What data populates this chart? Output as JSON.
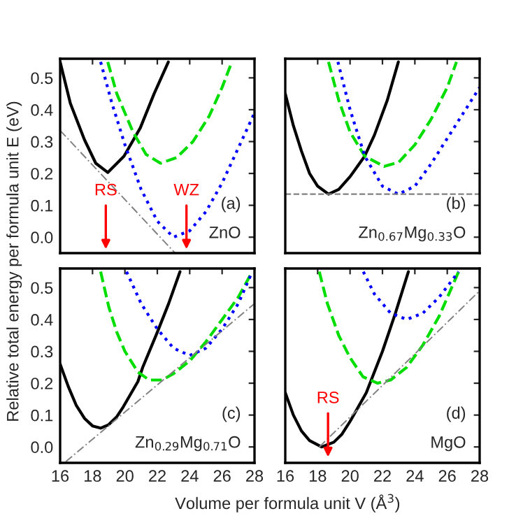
{
  "chart_data": [
    {
      "type": "line",
      "ylabel": "Relative total energy per formula unit E (eV)",
      "xlim": [
        16,
        28
      ],
      "ylim": [
        -0.05,
        0.56
      ],
      "xticks": [
        16,
        18,
        20,
        22,
        24,
        26,
        28
      ],
      "yticks": [
        {
          "value": 0.0,
          "label": "0.0"
        },
        0.1,
        0.2,
        0.3,
        0.4,
        0.5
      ],
      "tick_labels": "y",
      "grid": false,
      "legend": false,
      "series": [
        {
          "color": "#000000",
          "line_style": "solid",
          "x": [
            16,
            16.63,
            17.5,
            18.2,
            18.94,
            19.94,
            20.95,
            21.8,
            22.68
          ],
          "values": [
            0.55,
            0.42,
            0.306,
            0.232,
            0.203,
            0.254,
            0.343,
            0.45,
            0.55
          ]
        },
        {
          "color": "#00dd00",
          "line_style": "dashed",
          "x": [
            18.94,
            19.5,
            20.5,
            21.3,
            22.2,
            23.2,
            24.2,
            25.2,
            26.0,
            26.6
          ],
          "values": [
            0.55,
            0.45,
            0.33,
            0.26,
            0.232,
            0.25,
            0.3,
            0.38,
            0.47,
            0.55
          ]
        },
        {
          "color": "#0000ff",
          "line_style": "dotted",
          "x": [
            18.5,
            19.2,
            20,
            21,
            22,
            23,
            24,
            25,
            26,
            27,
            28
          ],
          "values": [
            0.55,
            0.42,
            0.29,
            0.15,
            0.05,
            0.0,
            0.02,
            0.08,
            0.17,
            0.28,
            0.39
          ]
        },
        {
          "color": "#808080",
          "line_style": "dashed",
          "x": [
            16,
            23.1
          ],
          "values": [
            0.335,
            -0.05
          ]
        }
      ],
      "annotations": [
        "(a)",
        "ZnO",
        "RS",
        "WZ"
      ]
    },
    {
      "type": "line",
      "xlim": [
        16,
        28
      ],
      "ylim": [
        -0.05,
        0.56
      ],
      "xticks": [
        16,
        18,
        20,
        22,
        24,
        26,
        28
      ],
      "yticks": [
        0.0,
        0.1,
        0.2,
        0.3,
        0.4,
        0.5
      ],
      "tick_labels": false,
      "grid": false,
      "legend": false,
      "series": [
        {
          "color": "#000000",
          "line_style": "solid",
          "x": [
            16,
            16.5,
            17,
            17.5,
            18,
            18.67,
            19.3,
            20,
            20.9,
            21.5,
            22.3,
            22.98
          ],
          "values": [
            0.45,
            0.35,
            0.27,
            0.2,
            0.16,
            0.135,
            0.15,
            0.19,
            0.254,
            0.32,
            0.43,
            0.55
          ]
        },
        {
          "color": "#00dd00",
          "line_style": "dashed",
          "x": [
            18.67,
            19.3,
            20,
            20.91,
            22.1,
            23,
            24,
            25,
            26,
            26.57
          ],
          "values": [
            0.55,
            0.43,
            0.33,
            0.254,
            0.222,
            0.235,
            0.29,
            0.37,
            0.47,
            0.55
          ]
        },
        {
          "color": "#0000ff",
          "line_style": "dotted",
          "x": [
            19.25,
            20,
            20.91,
            22,
            22.98,
            24,
            25,
            26,
            27,
            28
          ],
          "values": [
            0.55,
            0.4,
            0.254,
            0.16,
            0.135,
            0.16,
            0.23,
            0.31,
            0.39,
            0.47
          ]
        }
      ],
      "ref_lines": [
        {
          "axis": "y",
          "value": 0.135,
          "color": "#808080",
          "line_style": "dashed"
        }
      ],
      "annotations": [
        "(b)",
        "Zn$_{0.67}$Mg$_{0.33}$O"
      ]
    },
    {
      "type": "line",
      "xlabel": "Volume per formula unit V (Å$^{3}$)",
      "xlim": [
        16,
        28
      ],
      "ylim": [
        -0.05,
        0.56
      ],
      "xticks": [
        16,
        18,
        20,
        22,
        24,
        26,
        28
      ],
      "yticks": [
        {
          "value": 0.0,
          "label": "0.0"
        },
        0.1,
        0.2,
        0.3,
        0.4,
        0.5
      ],
      "grid": false,
      "legend": false,
      "series": [
        {
          "color": "#000000",
          "line_style": "solid",
          "x": [
            16,
            16.5,
            17,
            17.5,
            18,
            18.5,
            19,
            19.5,
            19.9,
            20.8,
            21.1,
            22,
            22.7,
            23.4
          ],
          "values": [
            0.26,
            0.19,
            0.13,
            0.09,
            0.066,
            0.059,
            0.07,
            0.095,
            0.126,
            0.205,
            0.25,
            0.36,
            0.45,
            0.55
          ]
        },
        {
          "color": "#00dd00",
          "line_style": "dashed",
          "x": [
            18.5,
            19,
            19.5,
            20,
            20.8,
            21.5,
            22.3,
            23,
            24,
            25,
            26,
            27,
            27.86
          ],
          "values": [
            0.55,
            0.44,
            0.36,
            0.3,
            0.235,
            0.21,
            0.21,
            0.23,
            0.27,
            0.33,
            0.4,
            0.47,
            0.55
          ]
        },
        {
          "color": "#0000ff",
          "line_style": "dotted",
          "x": [
            20.1,
            21,
            22,
            23,
            24,
            25,
            26,
            27,
            27.86
          ],
          "values": [
            0.55,
            0.45,
            0.37,
            0.31,
            0.287,
            0.31,
            0.37,
            0.45,
            0.55
          ]
        },
        {
          "color": "#808080",
          "line_style": "dashed",
          "x": [
            16.35,
            28
          ],
          "values": [
            -0.046,
            0.45
          ]
        }
      ],
      "annotations": [
        "(c)",
        "Zn$_{0.29}$Mg$_{0.71}$O"
      ]
    },
    {
      "type": "line",
      "xlim": [
        16,
        28
      ],
      "ylim": [
        -0.05,
        0.56
      ],
      "xticks": [
        16,
        18,
        20,
        22,
        24,
        26,
        28
      ],
      "yticks": [
        0.0,
        0.1,
        0.2,
        0.3,
        0.4,
        0.5
      ],
      "tick_labels": "x",
      "grid": false,
      "legend": false,
      "series": [
        {
          "color": "#000000",
          "line_style": "solid",
          "x": [
            16,
            16.5,
            17,
            17.5,
            18.24,
            19,
            19.5,
            20,
            21,
            22,
            22.8,
            23.6
          ],
          "values": [
            0.17,
            0.1,
            0.05,
            0.02,
            0.0,
            0.015,
            0.04,
            0.08,
            0.17,
            0.3,
            0.42,
            0.55
          ]
        },
        {
          "color": "#00dd00",
          "line_style": "dashed",
          "x": [
            18.1,
            18.6,
            19.3,
            20,
            20.8,
            21.7,
            22.5,
            23.5,
            24.5,
            25.5,
            26.7
          ],
          "values": [
            0.55,
            0.45,
            0.35,
            0.28,
            0.22,
            0.2,
            0.21,
            0.25,
            0.32,
            0.41,
            0.55
          ]
        },
        {
          "color": "#0000ff",
          "line_style": "dotted",
          "x": [
            20.82,
            21.5,
            22.5,
            23.5,
            24.5,
            25.5,
            26.7
          ],
          "values": [
            0.55,
            0.48,
            0.42,
            0.4,
            0.42,
            0.47,
            0.55
          ]
        },
        {
          "color": "#808080",
          "line_style": "dashed",
          "x": [
            18.1,
            28
          ],
          "values": [
            0.0,
            0.49
          ]
        }
      ],
      "annotations": [
        "(d)",
        "MgO",
        "RS"
      ]
    }
  ]
}
